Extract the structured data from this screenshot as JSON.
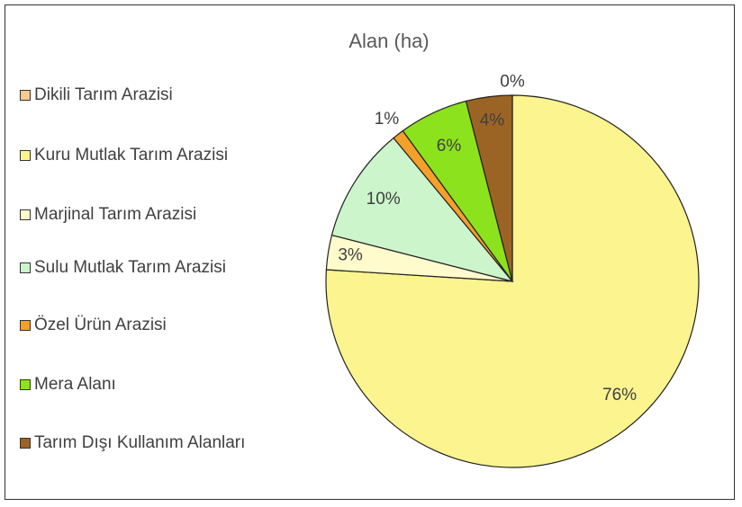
{
  "chart_data": {
    "type": "pie",
    "title": "Alan (ha)",
    "categories": [
      "Dikili Tarım Arazisi",
      "Kuru Mutlak Tarım Arazisi",
      "Marjinal Tarım Arazisi",
      "Sulu Mutlak Tarım Arazisi",
      "Özel Ürün Arazisi",
      "Mera Alanı",
      "Tarım Dışı Kullanım Alanları"
    ],
    "values": [
      0,
      76,
      3,
      10,
      1,
      6,
      4
    ],
    "value_labels": [
      "0%",
      "76%",
      "3%",
      "10%",
      "1%",
      "6%",
      "4%"
    ],
    "colors": [
      "#f7c98e",
      "#fbf48f",
      "#fffbcc",
      "#ccf5cc",
      "#f5a02a",
      "#8ce21c",
      "#9c6424"
    ],
    "legend": "left"
  }
}
